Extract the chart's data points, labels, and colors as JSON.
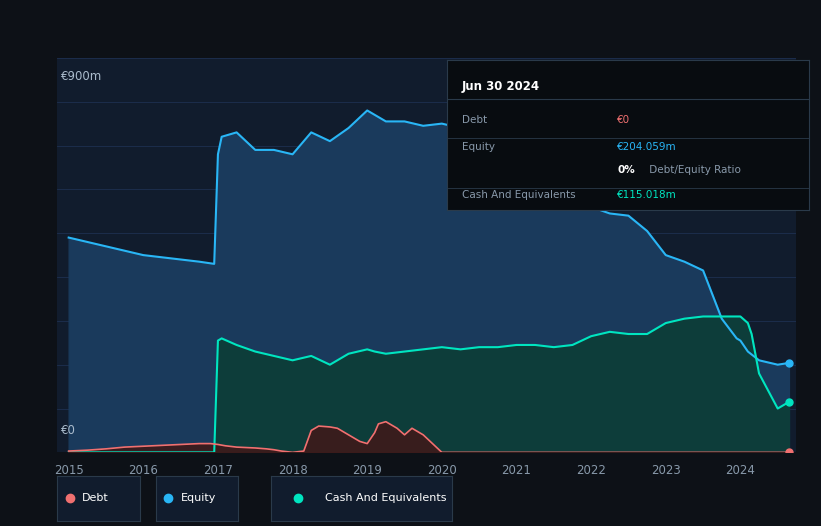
{
  "bg_color": "#0d1117",
  "plot_bg_color": "#111c2d",
  "ylabel_900": "€900m",
  "ylabel_0": "€0",
  "x_ticks": [
    2015,
    2016,
    2017,
    2018,
    2019,
    2020,
    2021,
    2022,
    2023,
    2024
  ],
  "equity_color": "#29b6f6",
  "equity_fill": "#1a3a5c",
  "cash_color": "#00e5c0",
  "cash_fill": "#0d3d3a",
  "debt_color": "#f07070",
  "debt_fill": "#3d1a1a",
  "grid_color": "#1e3050",
  "annotation_bg": "#080c10",
  "annotation_title": "Jun 30 2024",
  "annotation_lines": [
    [
      "Debt",
      "€0",
      "#f07070"
    ],
    [
      "Equity",
      "€204.059m",
      "#29b6f6"
    ],
    [
      "",
      "0% Debt/Equity Ratio",
      "#ffffff"
    ],
    [
      "Cash And Equivalents",
      "€115.018m",
      "#00e5c0"
    ]
  ],
  "equity_x": [
    2015.0,
    2015.25,
    2015.5,
    2015.75,
    2016.0,
    2016.25,
    2016.5,
    2016.75,
    2016.95,
    2017.0,
    2017.05,
    2017.25,
    2017.5,
    2017.75,
    2018.0,
    2018.25,
    2018.5,
    2018.75,
    2019.0,
    2019.25,
    2019.5,
    2019.75,
    2020.0,
    2020.25,
    2020.5,
    2020.75,
    2021.0,
    2021.25,
    2021.5,
    2021.75,
    2022.0,
    2022.25,
    2022.5,
    2022.75,
    2023.0,
    2023.25,
    2023.5,
    2023.75,
    2023.95,
    2024.0,
    2024.1,
    2024.25,
    2024.5,
    2024.65
  ],
  "equity_y": [
    490,
    480,
    470,
    460,
    450,
    445,
    440,
    435,
    430,
    680,
    720,
    730,
    690,
    690,
    680,
    730,
    710,
    740,
    780,
    755,
    755,
    745,
    750,
    740,
    730,
    725,
    720,
    710,
    700,
    695,
    560,
    545,
    540,
    505,
    450,
    435,
    415,
    305,
    260,
    255,
    230,
    210,
    200,
    204
  ],
  "cash_x": [
    2015.0,
    2016.9,
    2016.95,
    2017.0,
    2017.05,
    2017.25,
    2017.5,
    2017.75,
    2018.0,
    2018.25,
    2018.5,
    2018.75,
    2019.0,
    2019.1,
    2019.25,
    2019.5,
    2019.75,
    2020.0,
    2020.25,
    2020.5,
    2020.75,
    2021.0,
    2021.25,
    2021.5,
    2021.75,
    2022.0,
    2022.25,
    2022.5,
    2022.75,
    2023.0,
    2023.25,
    2023.5,
    2023.75,
    2023.95,
    2024.0,
    2024.1,
    2024.15,
    2024.25,
    2024.5,
    2024.65
  ],
  "cash_y": [
    0,
    0,
    0,
    255,
    260,
    245,
    230,
    220,
    210,
    220,
    200,
    225,
    235,
    230,
    225,
    230,
    235,
    240,
    235,
    240,
    240,
    245,
    245,
    240,
    245,
    265,
    275,
    270,
    270,
    295,
    305,
    310,
    310,
    310,
    310,
    295,
    270,
    180,
    100,
    115
  ],
  "debt_x": [
    2015.0,
    2015.25,
    2015.5,
    2015.75,
    2016.0,
    2016.25,
    2016.5,
    2016.75,
    2016.9,
    2017.0,
    2017.1,
    2017.25,
    2017.5,
    2017.65,
    2017.75,
    2017.85,
    2018.0,
    2018.15,
    2018.25,
    2018.35,
    2018.5,
    2018.6,
    2018.75,
    2018.9,
    2019.0,
    2019.1,
    2019.15,
    2019.25,
    2019.4,
    2019.5,
    2019.6,
    2019.75,
    2020.0,
    2020.25,
    2021.0,
    2022.0,
    2023.0,
    2024.0,
    2024.5,
    2024.65
  ],
  "debt_y": [
    3,
    5,
    8,
    12,
    14,
    16,
    18,
    20,
    20,
    18,
    15,
    12,
    10,
    8,
    6,
    3,
    0,
    3,
    50,
    60,
    58,
    55,
    40,
    25,
    20,
    45,
    65,
    70,
    55,
    40,
    55,
    40,
    0,
    0,
    0,
    0,
    0,
    0,
    0,
    0
  ],
  "ylim": [
    0,
    900
  ],
  "xlim": [
    2014.85,
    2024.75
  ],
  "figsize": [
    8.21,
    5.26
  ],
  "dpi": 100
}
